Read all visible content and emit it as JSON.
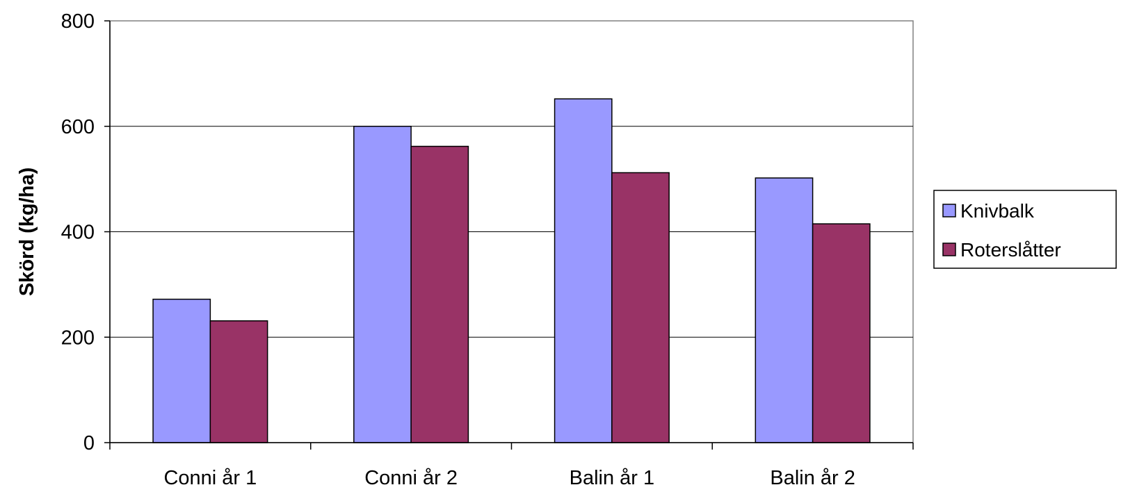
{
  "chart_data": {
    "type": "bar",
    "title": "",
    "xlabel": "",
    "ylabel": "Skörd (kg/ha)",
    "ylim": [
      0,
      800
    ],
    "yticks": [
      0,
      200,
      400,
      600,
      800
    ],
    "grid": true,
    "legend_position": "right",
    "categories": [
      "Conni år 1",
      "Conni år 2",
      "Balin år 1",
      "Balin år 2"
    ],
    "series": [
      {
        "name": "Knivbalk",
        "color": "#9999ff",
        "values": [
          272,
          600,
          652,
          502
        ]
      },
      {
        "name": "Roterslåtter",
        "color": "#993366",
        "values": [
          231,
          562,
          512,
          415
        ]
      }
    ]
  }
}
